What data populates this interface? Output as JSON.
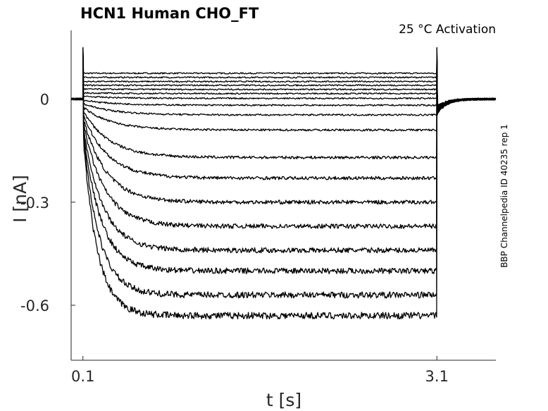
{
  "chart_data": {
    "type": "line",
    "title": "HCN1  Human  CHO_FT",
    "annotation": "25 °C  Activation",
    "side_label": "BBP Channelpedia ID 40235 rep 1",
    "xlabel": "t [s]",
    "ylabel": "I [nA]",
    "xlim": [
      0,
      3.6
    ],
    "ylim": [
      -0.76,
      0.2
    ],
    "x_ticks": [
      0.1,
      3.1
    ],
    "x_tick_labels": [
      "0.1",
      "3.1"
    ],
    "y_ticks": [
      0,
      -0.3,
      -0.6
    ],
    "y_tick_labels": [
      "0",
      "-0.3",
      "-0.6"
    ],
    "grid": false,
    "step_start_s": 0.1,
    "step_end_s": 3.1,
    "holding_current_nA": 0,
    "sweeps": [
      {
        "initial_nA": 0.075,
        "steady_nA": 0.075
      },
      {
        "initial_nA": 0.063,
        "steady_nA": 0.063
      },
      {
        "initial_nA": 0.051,
        "steady_nA": 0.051
      },
      {
        "initial_nA": 0.04,
        "steady_nA": 0.04
      },
      {
        "initial_nA": 0.029,
        "steady_nA": 0.028
      },
      {
        "initial_nA": 0.018,
        "steady_nA": 0.016
      },
      {
        "initial_nA": 0.008,
        "steady_nA": 0.002
      },
      {
        "initial_nA": -0.003,
        "steady_nA": -0.018
      },
      {
        "initial_nA": -0.013,
        "steady_nA": -0.046
      },
      {
        "initial_nA": -0.023,
        "steady_nA": -0.09
      },
      {
        "initial_nA": -0.033,
        "steady_nA": -0.17
      },
      {
        "initial_nA": -0.043,
        "steady_nA": -0.23
      },
      {
        "initial_nA": -0.053,
        "steady_nA": -0.3
      },
      {
        "initial_nA": -0.063,
        "steady_nA": -0.37
      },
      {
        "initial_nA": -0.073,
        "steady_nA": -0.44
      },
      {
        "initial_nA": -0.083,
        "steady_nA": -0.5
      },
      {
        "initial_nA": -0.093,
        "steady_nA": -0.57
      },
      {
        "initial_nA": -0.103,
        "steady_nA": -0.63
      }
    ]
  }
}
